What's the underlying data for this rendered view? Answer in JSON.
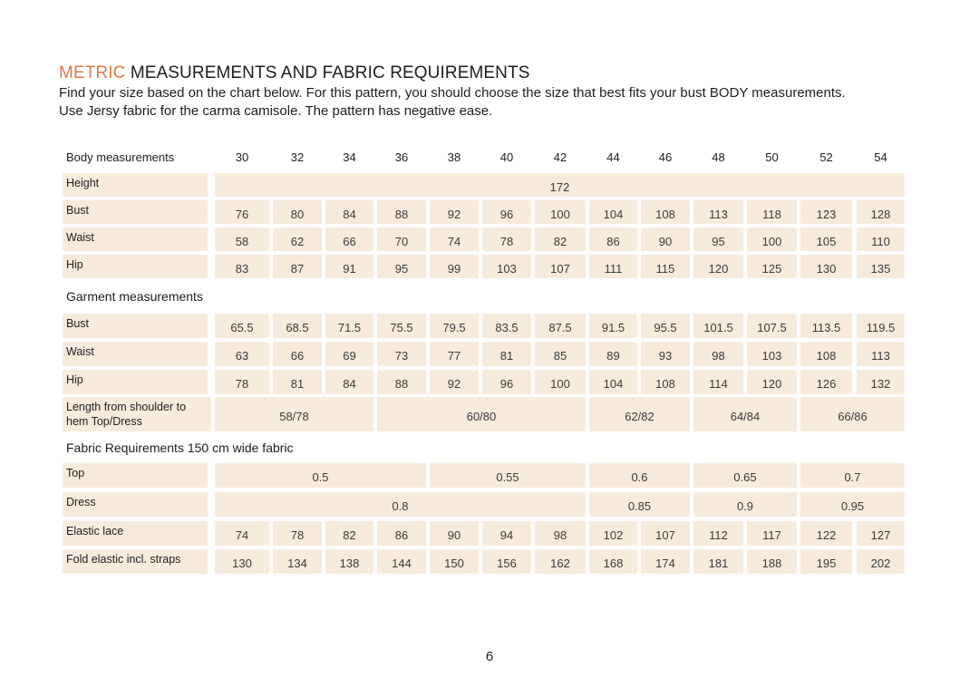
{
  "heading": {
    "accent": "METRIC",
    "rest": " MEASUREMENTS AND FABRIC REQUIREMENTS"
  },
  "intro": {
    "line1": "Find your size based on the chart below. For this pattern, you should choose the size that best fits your bust BODY measurements.",
    "line2": "Use Jersy fabric for the carma camisole. The pattern has negative ease."
  },
  "table": {
    "header_label": "Body measurements",
    "sizes": [
      "30",
      "32",
      "34",
      "36",
      "38",
      "40",
      "42",
      "44",
      "46",
      "48",
      "50",
      "52",
      "54"
    ],
    "body_rows": [
      {
        "label": "Height",
        "cells": [
          {
            "span": 13,
            "value": "172"
          }
        ]
      },
      {
        "label": "Bust",
        "cells": [
          {
            "span": 1,
            "value": "76"
          },
          {
            "span": 1,
            "value": "80"
          },
          {
            "span": 1,
            "value": "84"
          },
          {
            "span": 1,
            "value": "88"
          },
          {
            "span": 1,
            "value": "92"
          },
          {
            "span": 1,
            "value": "96"
          },
          {
            "span": 1,
            "value": "100"
          },
          {
            "span": 1,
            "value": "104"
          },
          {
            "span": 1,
            "value": "108"
          },
          {
            "span": 1,
            "value": "113"
          },
          {
            "span": 1,
            "value": "118"
          },
          {
            "span": 1,
            "value": "123"
          },
          {
            "span": 1,
            "value": "128"
          }
        ]
      },
      {
        "label": "Waist",
        "cells": [
          {
            "span": 1,
            "value": "58"
          },
          {
            "span": 1,
            "value": "62"
          },
          {
            "span": 1,
            "value": "66"
          },
          {
            "span": 1,
            "value": "70"
          },
          {
            "span": 1,
            "value": "74"
          },
          {
            "span": 1,
            "value": "78"
          },
          {
            "span": 1,
            "value": "82"
          },
          {
            "span": 1,
            "value": "86"
          },
          {
            "span": 1,
            "value": "90"
          },
          {
            "span": 1,
            "value": "95"
          },
          {
            "span": 1,
            "value": "100"
          },
          {
            "span": 1,
            "value": "105"
          },
          {
            "span": 1,
            "value": "110"
          }
        ]
      },
      {
        "label": "Hip",
        "cells": [
          {
            "span": 1,
            "value": "83"
          },
          {
            "span": 1,
            "value": "87"
          },
          {
            "span": 1,
            "value": "91"
          },
          {
            "span": 1,
            "value": "95"
          },
          {
            "span": 1,
            "value": "99"
          },
          {
            "span": 1,
            "value": "103"
          },
          {
            "span": 1,
            "value": "107"
          },
          {
            "span": 1,
            "value": "111"
          },
          {
            "span": 1,
            "value": "115"
          },
          {
            "span": 1,
            "value": "120"
          },
          {
            "span": 1,
            "value": "125"
          },
          {
            "span": 1,
            "value": "130"
          },
          {
            "span": 1,
            "value": "135"
          }
        ]
      }
    ],
    "garment_title": "Garment measurements",
    "garment_rows": [
      {
        "label": "Bust",
        "cells": [
          {
            "span": 1,
            "value": "65.5"
          },
          {
            "span": 1,
            "value": "68.5"
          },
          {
            "span": 1,
            "value": "71.5"
          },
          {
            "span": 1,
            "value": "75.5"
          },
          {
            "span": 1,
            "value": "79.5"
          },
          {
            "span": 1,
            "value": "83.5"
          },
          {
            "span": 1,
            "value": "87.5"
          },
          {
            "span": 1,
            "value": "91.5"
          },
          {
            "span": 1,
            "value": "95.5"
          },
          {
            "span": 1,
            "value": "101.5"
          },
          {
            "span": 1,
            "value": "107.5"
          },
          {
            "span": 1,
            "value": "113.5"
          },
          {
            "span": 1,
            "value": "119.5"
          }
        ]
      },
      {
        "label": "Waist",
        "cells": [
          {
            "span": 1,
            "value": "63"
          },
          {
            "span": 1,
            "value": "66"
          },
          {
            "span": 1,
            "value": "69"
          },
          {
            "span": 1,
            "value": "73"
          },
          {
            "span": 1,
            "value": "77"
          },
          {
            "span": 1,
            "value": "81"
          },
          {
            "span": 1,
            "value": "85"
          },
          {
            "span": 1,
            "value": "89"
          },
          {
            "span": 1,
            "value": "93"
          },
          {
            "span": 1,
            "value": "98"
          },
          {
            "span": 1,
            "value": "103"
          },
          {
            "span": 1,
            "value": "108"
          },
          {
            "span": 1,
            "value": "113"
          }
        ]
      },
      {
        "label": "Hip",
        "cells": [
          {
            "span": 1,
            "value": "78"
          },
          {
            "span": 1,
            "value": "81"
          },
          {
            "span": 1,
            "value": "84"
          },
          {
            "span": 1,
            "value": "88"
          },
          {
            "span": 1,
            "value": "92"
          },
          {
            "span": 1,
            "value": "96"
          },
          {
            "span": 1,
            "value": "100"
          },
          {
            "span": 1,
            "value": "104"
          },
          {
            "span": 1,
            "value": "108"
          },
          {
            "span": 1,
            "value": "114"
          },
          {
            "span": 1,
            "value": "120"
          },
          {
            "span": 1,
            "value": "126"
          },
          {
            "span": 1,
            "value": "132"
          }
        ]
      },
      {
        "label_lines": [
          "Length from shoulder to",
          "hem Top/Dress"
        ],
        "cells": [
          {
            "span": 3,
            "value": "58/78"
          },
          {
            "span": 4,
            "value": "60/80"
          },
          {
            "span": 2,
            "value": "62/82"
          },
          {
            "span": 2,
            "value": "64/84"
          },
          {
            "span": 2,
            "value": "66/86"
          }
        ]
      }
    ],
    "fabric_title": "Fabric Requirements 150 cm wide fabric",
    "fabric_rows": [
      {
        "label": "Top",
        "cells": [
          {
            "span": 4,
            "value": "0.5"
          },
          {
            "span": 3,
            "value": "0.55"
          },
          {
            "span": 2,
            "value": "0.6"
          },
          {
            "span": 2,
            "value": "0.65"
          },
          {
            "span": 2,
            "value": "0.7"
          }
        ]
      },
      {
        "label": "Dress",
        "cells": [
          {
            "span": 7,
            "value": "0.8"
          },
          {
            "span": 2,
            "value": "0.85"
          },
          {
            "span": 2,
            "value": "0.9"
          },
          {
            "span": 2,
            "value": "0.95"
          }
        ]
      },
      {
        "label": "Elastic lace",
        "cells": [
          {
            "span": 1,
            "value": "74"
          },
          {
            "span": 1,
            "value": "78"
          },
          {
            "span": 1,
            "value": "82"
          },
          {
            "span": 1,
            "value": "86"
          },
          {
            "span": 1,
            "value": "90"
          },
          {
            "span": 1,
            "value": "94"
          },
          {
            "span": 1,
            "value": "98"
          },
          {
            "span": 1,
            "value": "102"
          },
          {
            "span": 1,
            "value": "107"
          },
          {
            "span": 1,
            "value": "112"
          },
          {
            "span": 1,
            "value": "117"
          },
          {
            "span": 1,
            "value": "122"
          },
          {
            "span": 1,
            "value": "127"
          }
        ]
      },
      {
        "label": "Fold elastic incl. straps",
        "cells": [
          {
            "span": 1,
            "value": "130"
          },
          {
            "span": 1,
            "value": "134"
          },
          {
            "span": 1,
            "value": "138"
          },
          {
            "span": 1,
            "value": "144"
          },
          {
            "span": 1,
            "value": "150"
          },
          {
            "span": 1,
            "value": "156"
          },
          {
            "span": 1,
            "value": "162"
          },
          {
            "span": 1,
            "value": "168"
          },
          {
            "span": 1,
            "value": "174"
          },
          {
            "span": 1,
            "value": "181"
          },
          {
            "span": 1,
            "value": "188"
          },
          {
            "span": 1,
            "value": "195"
          },
          {
            "span": 1,
            "value": "202"
          }
        ]
      }
    ]
  },
  "page_number": "6",
  "colors": {
    "accent": "#e0784a",
    "cell_fill": "#f7ecdc",
    "text": "#1d1d1b"
  }
}
